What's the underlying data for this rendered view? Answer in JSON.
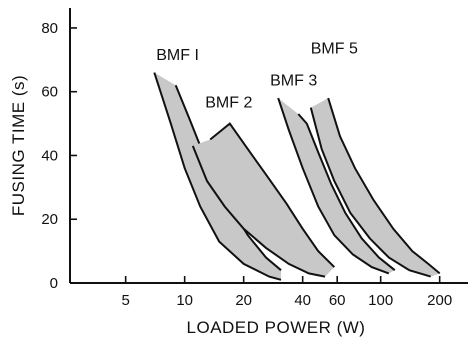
{
  "chart_data": {
    "type": "area",
    "xlabel": "LOADED POWER (W)",
    "ylabel": "FUSING TIME (s)",
    "x_scale": "log",
    "xlim": [
      2.6,
      260
    ],
    "ylim": [
      0,
      85
    ],
    "x_ticks": [
      {
        "value": 5,
        "label": "5"
      },
      {
        "value": 10,
        "label": "10"
      },
      {
        "value": 20,
        "label": "20"
      },
      {
        "value": 40,
        "label": "40"
      },
      {
        "value": 60,
        "label": "60"
      },
      {
        "value": 100,
        "label": "100"
      },
      {
        "value": 200,
        "label": "200"
      }
    ],
    "y_ticks": [
      0,
      20,
      40,
      60,
      80
    ],
    "grid": false,
    "band_fill": "#c8c8c8",
    "line_color": "#111111",
    "series": [
      {
        "name": "BMF 1",
        "lower": [
          [
            7.0,
            66
          ],
          [
            8.5,
            50
          ],
          [
            10,
            36
          ],
          [
            12,
            24
          ],
          [
            15,
            13
          ],
          [
            20,
            6
          ],
          [
            27,
            2
          ],
          [
            31,
            1
          ]
        ],
        "upper": [
          [
            9.0,
            62
          ],
          [
            10.5,
            52
          ],
          [
            12,
            43
          ],
          [
            14,
            34
          ],
          [
            17,
            24
          ],
          [
            21,
            15
          ],
          [
            26,
            8
          ],
          [
            31,
            4
          ]
        ]
      },
      {
        "name": "BMF 2",
        "lower": [
          [
            11.0,
            43
          ],
          [
            13,
            32
          ],
          [
            16,
            24
          ],
          [
            20,
            17
          ],
          [
            26,
            11
          ],
          [
            34,
            6
          ],
          [
            43,
            3
          ],
          [
            52,
            2
          ]
        ],
        "upper": [
          [
            13.5,
            45
          ],
          [
            17,
            50
          ],
          [
            21,
            42
          ],
          [
            26,
            34
          ],
          [
            33,
            25
          ],
          [
            40,
            17
          ],
          [
            48,
            10
          ],
          [
            58,
            5
          ]
        ]
      },
      {
        "name": "BMF 3",
        "lower": [
          [
            30,
            58
          ],
          [
            34,
            48
          ],
          [
            40,
            36
          ],
          [
            48,
            24
          ],
          [
            58,
            15
          ],
          [
            72,
            9
          ],
          [
            90,
            5
          ],
          [
            110,
            3
          ]
        ],
        "upper": [
          [
            38,
            53
          ],
          [
            42,
            50
          ],
          [
            48,
            41
          ],
          [
            56,
            31
          ],
          [
            66,
            22
          ],
          [
            80,
            14
          ],
          [
            98,
            8
          ],
          [
            118,
            4
          ]
        ]
      },
      {
        "name": "BMF 5",
        "lower": [
          [
            44,
            55
          ],
          [
            50,
            42
          ],
          [
            58,
            32
          ],
          [
            70,
            22
          ],
          [
            88,
            14
          ],
          [
            110,
            8
          ],
          [
            140,
            4
          ],
          [
            180,
            2
          ]
        ],
        "upper": [
          [
            54,
            58
          ],
          [
            62,
            46
          ],
          [
            74,
            36
          ],
          [
            92,
            26
          ],
          [
            116,
            17
          ],
          [
            145,
            10
          ],
          [
            175,
            6
          ],
          [
            200,
            3
          ]
        ]
      }
    ],
    "labels": [
      {
        "text": "BMF I",
        "x": 9.2,
        "y": 70
      },
      {
        "text": "BMF 2",
        "x": 16.8,
        "y": 55
      },
      {
        "text": "BMF 3",
        "x": 36,
        "y": 62
      },
      {
        "text": "BMF 5",
        "x": 58,
        "y": 72
      }
    ]
  }
}
